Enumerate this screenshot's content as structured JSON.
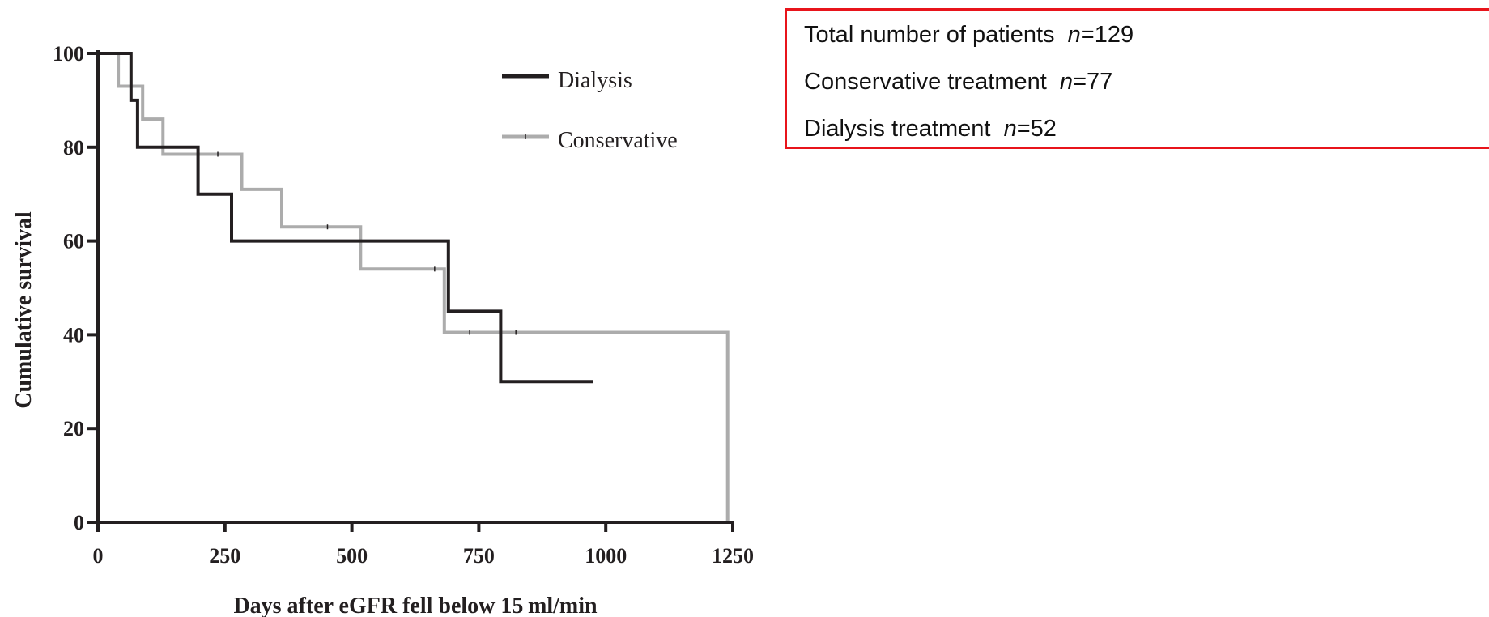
{
  "chart_data": {
    "type": "line",
    "title": "",
    "xlabel": "Days after eGFR fell below 15 ml/min",
    "ylabel": "Cumulative survival",
    "xlim": [
      0,
      1250
    ],
    "ylim": [
      0,
      100
    ],
    "x_ticks": [
      "0",
      "250",
      "500",
      "750",
      "1000",
      "1250"
    ],
    "y_ticks": [
      "0",
      "20",
      "40",
      "60",
      "80",
      "100"
    ],
    "grid": false,
    "legend_position": "top-right",
    "series": [
      {
        "name": "Dialysis",
        "color": "#231f20",
        "step_points": [
          [
            0,
            100
          ],
          [
            65,
            100
          ],
          [
            65,
            90
          ],
          [
            78,
            90
          ],
          [
            78,
            80
          ],
          [
            197,
            80
          ],
          [
            197,
            70
          ],
          [
            263,
            70
          ],
          [
            263,
            60
          ],
          [
            690,
            60
          ],
          [
            690,
            45
          ],
          [
            793,
            45
          ],
          [
            793,
            30
          ],
          [
            975,
            30
          ]
        ],
        "censor_x": []
      },
      {
        "name": "Conservative",
        "color": "#acacac",
        "step_points": [
          [
            0,
            100
          ],
          [
            40,
            100
          ],
          [
            40,
            93
          ],
          [
            88,
            93
          ],
          [
            88,
            86
          ],
          [
            128,
            86
          ],
          [
            128,
            78.5
          ],
          [
            283,
            78.5
          ],
          [
            283,
            71
          ],
          [
            362,
            71
          ],
          [
            362,
            63
          ],
          [
            517,
            63
          ],
          [
            517,
            54
          ],
          [
            682,
            54
          ],
          [
            682,
            40.5
          ],
          [
            1240,
            40.5
          ],
          [
            1240,
            0
          ]
        ],
        "censor_x": [
          236,
          452,
          663,
          732,
          823
        ]
      }
    ]
  },
  "info_box": {
    "lines": [
      {
        "prefix": "Total number of patients  ",
        "var": "n",
        "suffix": "=129"
      },
      {
        "prefix": "Conservative treatment  ",
        "var": "n",
        "suffix": "=77"
      },
      {
        "prefix": "Dialysis treatment  ",
        "var": "n",
        "suffix": "=52"
      }
    ]
  }
}
